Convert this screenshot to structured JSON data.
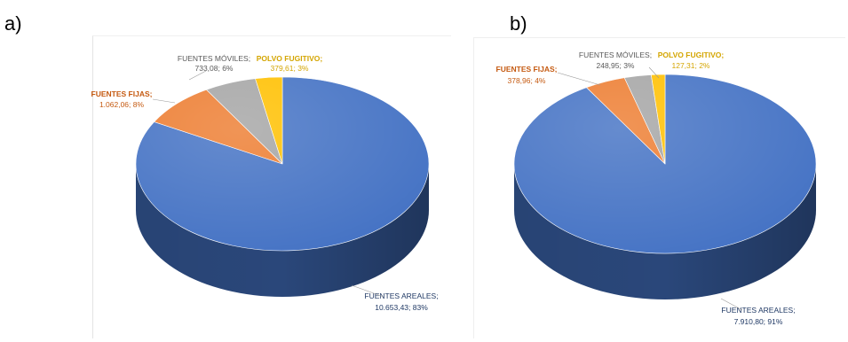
{
  "panels": {
    "a": {
      "letter": "a)"
    },
    "b": {
      "letter": "b)"
    }
  },
  "colors": {
    "areales": "#4472C4",
    "fijas": "#ED7D31",
    "moviles": "#A5A5A5",
    "polvo": "#FFC000",
    "label_areales": "#1F3864",
    "label_fijas": "#C55A11",
    "label_moviles": "#595959",
    "label_polvo": "#D4A500"
  },
  "chart_data": [
    {
      "type": "pie",
      "title": "",
      "categories": [
        "FUENTES AREALES",
        "FUENTES FIJAS",
        "FUENTES MÓVILES",
        "POLVO FUGITIVO"
      ],
      "values": [
        10653.43,
        1062.06,
        733.08,
        379.61
      ],
      "labels": [
        {
          "name": "FUENTES AREALES;",
          "value": "10.653,43; 83%"
        },
        {
          "name": "FUENTES FIJAS;",
          "value": "1.062,06; 8%"
        },
        {
          "name": "FUENTES MÓVILES;",
          "value": "733,08; 6%"
        },
        {
          "name": "POLVO FUGITIVO;",
          "value": "379,61; 3%"
        }
      ]
    },
    {
      "type": "pie",
      "title": "",
      "categories": [
        "FUENTES AREALES",
        "FUENTES FIJAS",
        "FUENTES MÓVILES",
        "POLVO FUGITIVO"
      ],
      "values": [
        7910.8,
        378.96,
        248.95,
        127.31
      ],
      "labels": [
        {
          "name": "FUENTES AREALES;",
          "value": "7.910,80; 91%"
        },
        {
          "name": "FUENTES FIJAS;",
          "value": "378,96; 4%"
        },
        {
          "name": "FUENTES MÓVILES;",
          "value": "248,95; 3%"
        },
        {
          "name": "POLVO FUGITIVO;",
          "value": "127,31; 2%"
        }
      ]
    }
  ]
}
